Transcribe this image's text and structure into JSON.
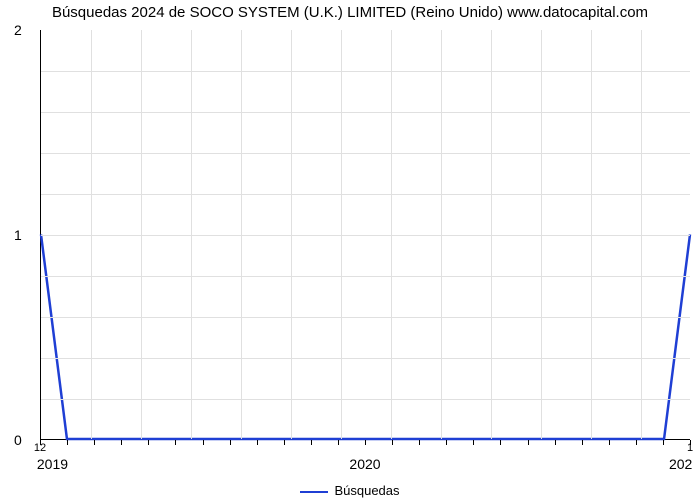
{
  "chart": {
    "type": "line",
    "title": "Búsquedas 2024 de SOCO SYSTEM (U.K.) LIMITED (Reino Unido) www.datocapital.com",
    "title_fontsize": 15,
    "background_color": "#ffffff",
    "grid_color": "#e0e0e0",
    "axis_color": "#000000",
    "line_color": "#1f3fd4",
    "line_width": 2.5,
    "y_axis": {
      "ticks": [
        0,
        1,
        2
      ],
      "ylim": [
        0,
        2
      ],
      "minor_divisions": 5,
      "label_fontsize": 14
    },
    "x_axis": {
      "major_ticks": [
        "2019",
        "2020",
        "202"
      ],
      "major_positions": [
        0,
        0.5,
        1.0
      ],
      "secondary_labels": {
        "left": "12",
        "right": "1"
      },
      "minor_tick_count": 24,
      "label_fontsize": 14
    },
    "series": {
      "name": "Búsquedas",
      "points": [
        {
          "x": 0.0,
          "y": 1.0
        },
        {
          "x": 0.04,
          "y": 0.0
        },
        {
          "x": 0.96,
          "y": 0.0
        },
        {
          "x": 1.0,
          "y": 1.0
        }
      ]
    },
    "legend": {
      "label": "Búsquedas",
      "fontsize": 13
    }
  }
}
